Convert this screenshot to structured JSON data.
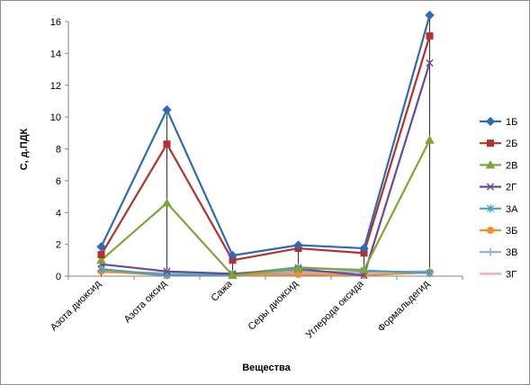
{
  "chart_data": {
    "type": "line",
    "xlabel": "Вещества",
    "ylabel": "С, д.ПДК",
    "ylim": [
      0,
      16
    ],
    "yticks": [
      "0",
      "2",
      "4",
      "6",
      "8",
      "10",
      "12",
      "14",
      "16"
    ],
    "categories": [
      "Азота диоксид",
      "Азота оксид",
      "Сажа",
      "Серы диоксид",
      "Углерода оксида",
      "Формальдегид"
    ],
    "grid": false,
    "drop_lines": true,
    "legend_position": "right",
    "series": [
      {
        "name": "1Б",
        "color": "#2F6BB3",
        "marker": "diamond",
        "values": [
          1.85,
          10.45,
          1.3,
          1.95,
          1.75,
          16.4
        ]
      },
      {
        "name": "2Б",
        "color": "#B3312E",
        "marker": "square",
        "values": [
          1.35,
          8.3,
          1.0,
          1.75,
          1.45,
          15.1
        ]
      },
      {
        "name": "2В",
        "color": "#7FA635",
        "marker": "triangle",
        "values": [
          1.0,
          4.6,
          0.05,
          0.5,
          0.4,
          8.55
        ]
      },
      {
        "name": "2Г",
        "color": "#6A4A95",
        "marker": "x",
        "values": [
          0.75,
          0.3,
          0.15,
          0.45,
          0.05,
          13.4
        ]
      },
      {
        "name": "3А",
        "color": "#3FA2C0",
        "marker": "star",
        "values": [
          0.45,
          0.05,
          0.1,
          0.55,
          0.35,
          0.2
        ]
      },
      {
        "name": "3Б",
        "color": "#F28E2B",
        "marker": "circle",
        "values": [
          0.3,
          0.05,
          0.1,
          0.1,
          0.05,
          0.25
        ]
      },
      {
        "name": "3В",
        "color": "#8EA9DB",
        "marker": "plus",
        "values": [
          0.35,
          0.15,
          0.1,
          0.3,
          0.25,
          0.3
        ]
      },
      {
        "name": "3Г",
        "color": "#F4A6A0",
        "marker": "dash",
        "values": [
          0.25,
          0.2,
          0.15,
          0.2,
          0.1,
          0.2
        ]
      }
    ]
  }
}
